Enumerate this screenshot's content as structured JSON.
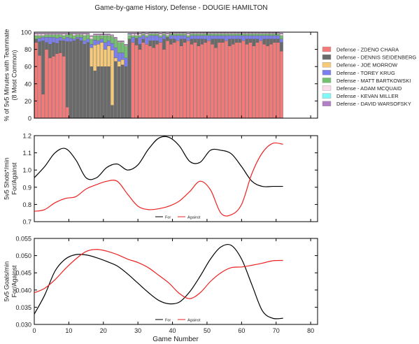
{
  "title": "Game-by-game History, Defense - DOUGIE HAMILTON",
  "colors": {
    "ZDENO CHARA": "#f47a7a",
    "DENNIS SEIDENBERG": "#6a6a6a",
    "JOE MORROW": "#f6ca78",
    "TOREY KRUG": "#7a7ef0",
    "MATT BARTKOWSKI": "#72c070",
    "ADAM MCQUAID": "#fcdcec",
    "KEVAN MILLER": "#80f8f8",
    "DAVID WARSOFSKY": "#b27ec6",
    "for_line": "#000000",
    "against_line": "#ee2222"
  },
  "chart_data": [
    {
      "type": "bar",
      "stacked": true,
      "ylabel": "% of 5v5 Minutes with Teammate\n(8 Most Common)",
      "xlim": [
        0,
        82
      ],
      "ylim": [
        0,
        100
      ],
      "yticks": [
        0,
        20,
        40,
        60,
        80,
        100
      ],
      "legend_position": "right",
      "legend": [
        "Defense - ZDENO CHARA",
        "Defense - DENNIS SEIDENBERG",
        "Defense - JOE MORROW",
        "Defense - TOREY KRUG",
        "Defense - MATT BARTKOWSKI",
        "Defense - ADAM MCQUAID",
        "Defense - KEVAN MILLER",
        "Defense - DAVID WARSOFSKY"
      ],
      "x": [
        1,
        2,
        3,
        4,
        5,
        6,
        7,
        8,
        9,
        10,
        11,
        12,
        13,
        14,
        15,
        16,
        17,
        18,
        19,
        20,
        21,
        22,
        23,
        24,
        25,
        26,
        27,
        28,
        29,
        30,
        31,
        32,
        33,
        34,
        35,
        36,
        37,
        38,
        39,
        40,
        41,
        42,
        43,
        44,
        45,
        46,
        47,
        48,
        49,
        50,
        51,
        52,
        53,
        54,
        55,
        56,
        57,
        58,
        59,
        60,
        61,
        62,
        63,
        64,
        65,
        66,
        67,
        68,
        69,
        70,
        71,
        72
      ],
      "series": [
        {
          "name": "Defense - ZDENO CHARA",
          "values": [
            88,
            73,
            28,
            80,
            70,
            72,
            75,
            76,
            72,
            13,
            0,
            0,
            0,
            0,
            0,
            0,
            0,
            0,
            0,
            0,
            0,
            0,
            0,
            0,
            0,
            0,
            0,
            0,
            88,
            85,
            80,
            88,
            86,
            84,
            82,
            86,
            88,
            80,
            90,
            86,
            88,
            90,
            84,
            88,
            90,
            86,
            88,
            84,
            86,
            88,
            90,
            86,
            82,
            88,
            88,
            90,
            84,
            86,
            88,
            88,
            90,
            86,
            88,
            84,
            88,
            90,
            86,
            84,
            86,
            88,
            88,
            78
          ]
        },
        {
          "name": "Defense - DENNIS SEIDENBERG",
          "values": [
            4,
            16,
            62,
            8,
            16,
            16,
            12,
            14,
            18,
            76,
            89,
            90,
            92,
            90,
            86,
            88,
            60,
            55,
            60,
            60,
            60,
            60,
            15,
            66,
            60,
            62,
            60,
            92,
            0,
            8,
            6,
            4,
            0,
            6,
            8,
            4,
            0,
            12,
            4,
            6,
            4,
            0,
            8,
            4,
            0,
            6,
            4,
            8,
            6,
            4,
            0,
            6,
            10,
            4,
            4,
            0,
            8,
            6,
            4,
            4,
            0,
            6,
            4,
            8,
            4,
            0,
            6,
            8,
            6,
            4,
            4,
            10
          ]
        },
        {
          "name": "Defense - JOE MORROW",
          "values": [
            0,
            0,
            0,
            0,
            0,
            0,
            0,
            0,
            0,
            0,
            0,
            0,
            0,
            0,
            0,
            0,
            22,
            30,
            26,
            28,
            20,
            24,
            64,
            4,
            6,
            6,
            0,
            0,
            0,
            0,
            0,
            0,
            0,
            0,
            0,
            0,
            0,
            0,
            0,
            0,
            0,
            0,
            0,
            0,
            0,
            0,
            0,
            0,
            0,
            0,
            0,
            0,
            0,
            0,
            0,
            0,
            0,
            0,
            0,
            0,
            0,
            0,
            0,
            0,
            0,
            0,
            0,
            0,
            0,
            0,
            0,
            0
          ]
        },
        {
          "name": "Defense - TOREY KRUG",
          "values": [
            0,
            4,
            4,
            6,
            8,
            6,
            6,
            4,
            2,
            5,
            4,
            2,
            2,
            4,
            4,
            4,
            4,
            6,
            4,
            4,
            8,
            6,
            8,
            12,
            10,
            8,
            10,
            0,
            6,
            0,
            8,
            4,
            8,
            6,
            6,
            6,
            6,
            4,
            0,
            4,
            4,
            6,
            4,
            4,
            4,
            4,
            4,
            4,
            4,
            4,
            6,
            4,
            4,
            4,
            4,
            6,
            4,
            4,
            4,
            4,
            6,
            4,
            4,
            4,
            4,
            6,
            4,
            4,
            4,
            4,
            4,
            4
          ]
        },
        {
          "name": "Defense - MATT BARTKOWSKI",
          "values": [
            4,
            3,
            2,
            3,
            3,
            3,
            4,
            3,
            4,
            3,
            5,
            4,
            3,
            3,
            6,
            5,
            6,
            5,
            6,
            4,
            8,
            6,
            8,
            10,
            12,
            12,
            14,
            4,
            2,
            3,
            2,
            2,
            2,
            2,
            2,
            2,
            2,
            2,
            2,
            2,
            2,
            2,
            2,
            2,
            2,
            2,
            2,
            2,
            2,
            2,
            2,
            2,
            2,
            2,
            2,
            2,
            2,
            2,
            2,
            2,
            2,
            2,
            2,
            2,
            2,
            2,
            2,
            2,
            2,
            2,
            2,
            4
          ]
        },
        {
          "name": "Defense - ADAM MCQUAID",
          "values": [
            2,
            2,
            2,
            1,
            1,
            1,
            1,
            1,
            2,
            1,
            0,
            2,
            1,
            1,
            2,
            1,
            3,
            1,
            1,
            1,
            1,
            1,
            1,
            1,
            1,
            1,
            1,
            1,
            2,
            2,
            2,
            1,
            2,
            1,
            1,
            1,
            2,
            1,
            2,
            1,
            1,
            1,
            1,
            1,
            2,
            1,
            1,
            1,
            1,
            1,
            1,
            1,
            1,
            1,
            1,
            1,
            1,
            1,
            1,
            1,
            1,
            1,
            1,
            1,
            1,
            1,
            1,
            1,
            1,
            1,
            1,
            2
          ]
        },
        {
          "name": "Defense - KEVAN MILLER",
          "values": [
            0,
            0,
            0,
            0,
            0,
            0,
            0,
            0,
            0,
            0,
            0,
            0,
            0,
            0,
            0,
            0,
            0,
            0,
            0,
            0,
            0,
            0,
            0,
            0,
            0,
            0,
            0,
            1,
            0,
            0,
            0,
            0,
            0,
            0,
            0,
            0,
            0,
            0,
            0,
            0,
            0,
            0,
            0,
            0,
            0,
            0,
            0,
            0,
            0,
            0,
            0,
            0,
            0,
            0,
            0,
            0,
            0,
            0,
            0,
            0,
            0,
            0,
            0,
            0,
            0,
            0,
            0,
            0,
            0,
            0,
            0,
            0
          ]
        },
        {
          "name": "Defense - DAVID WARSOFSKY",
          "values": [
            1,
            1,
            1,
            1,
            1,
            1,
            1,
            1,
            1,
            1,
            1,
            1,
            1,
            1,
            1,
            1,
            1,
            1,
            1,
            1,
            1,
            1,
            1,
            1,
            1,
            1,
            1,
            1,
            1,
            1,
            1,
            1,
            1,
            1,
            1,
            1,
            1,
            1,
            1,
            1,
            1,
            1,
            1,
            1,
            1,
            1,
            1,
            1,
            1,
            1,
            1,
            1,
            1,
            1,
            1,
            1,
            1,
            1,
            1,
            1,
            1,
            1,
            1,
            1,
            1,
            1,
            1,
            1,
            1,
            1,
            1,
            1
          ]
        }
      ]
    },
    {
      "type": "line",
      "ylabel": "5v5 Shots*/min\nFor/Against",
      "xlim": [
        0,
        82
      ],
      "ylim": [
        0.7,
        1.2
      ],
      "yticks": [
        0.7,
        0.8,
        0.9,
        1.0,
        1.1,
        1.2
      ],
      "legend_position": "bottom-center",
      "series": [
        {
          "name": "For",
          "x": [
            0,
            3,
            6,
            9,
            12,
            15,
            18,
            21,
            24,
            27,
            30,
            33,
            36,
            39,
            42,
            45,
            48,
            51,
            54,
            57,
            60,
            63,
            66,
            69,
            72
          ],
          "values": [
            0.955,
            1.02,
            1.1,
            1.125,
            1.06,
            0.955,
            0.955,
            1.015,
            1.035,
            1.0,
            1.03,
            1.12,
            1.185,
            1.19,
            1.14,
            1.05,
            1.045,
            1.115,
            1.115,
            1.095,
            1.02,
            0.935,
            0.905,
            0.905,
            0.905
          ]
        },
        {
          "name": "Against",
          "x": [
            0,
            3,
            6,
            9,
            12,
            15,
            18,
            21,
            24,
            27,
            30,
            33,
            36,
            39,
            42,
            45,
            48,
            51,
            54,
            57,
            60,
            63,
            66,
            69,
            72
          ],
          "values": [
            0.76,
            0.77,
            0.81,
            0.835,
            0.845,
            0.89,
            0.915,
            0.935,
            0.935,
            0.86,
            0.79,
            0.77,
            0.775,
            0.79,
            0.82,
            0.875,
            0.935,
            0.885,
            0.75,
            0.74,
            0.8,
            0.98,
            1.1,
            1.155,
            1.15
          ]
        }
      ]
    },
    {
      "type": "line",
      "ylabel": "5v5 Goals/min\nFor/Against",
      "xlabel": "Game Number",
      "xlim": [
        0,
        82
      ],
      "ylim": [
        0.03,
        0.055
      ],
      "yticks": [
        0.03,
        0.035,
        0.04,
        0.045,
        0.05,
        0.055
      ],
      "xticks": [
        0,
        10,
        20,
        30,
        40,
        50,
        60,
        70,
        80
      ],
      "legend_position": "bottom-center",
      "series": [
        {
          "name": "For",
          "x": [
            0,
            3,
            6,
            9,
            12,
            15,
            18,
            21,
            24,
            27,
            30,
            33,
            36,
            39,
            42,
            45,
            48,
            51,
            54,
            57,
            60,
            63,
            66,
            69,
            72
          ],
          "values": [
            0.033,
            0.0385,
            0.0455,
            0.049,
            0.0503,
            0.0502,
            0.0494,
            0.0483,
            0.047,
            0.0447,
            0.042,
            0.0393,
            0.037,
            0.036,
            0.0365,
            0.0395,
            0.044,
            0.049,
            0.0525,
            0.053,
            0.049,
            0.0415,
            0.034,
            0.0318,
            0.0318
          ]
        },
        {
          "name": "Against",
          "x": [
            0,
            3,
            6,
            9,
            12,
            15,
            18,
            21,
            24,
            27,
            30,
            33,
            36,
            39,
            42,
            45,
            48,
            51,
            54,
            57,
            60,
            63,
            66,
            69,
            72
          ],
          "values": [
            0.0392,
            0.0405,
            0.043,
            0.0462,
            0.049,
            0.0512,
            0.0518,
            0.0513,
            0.0503,
            0.049,
            0.048,
            0.0465,
            0.0443,
            0.042,
            0.039,
            0.0375,
            0.0392,
            0.0425,
            0.045,
            0.0465,
            0.0467,
            0.0472,
            0.0478,
            0.0485,
            0.0486
          ]
        }
      ]
    }
  ]
}
